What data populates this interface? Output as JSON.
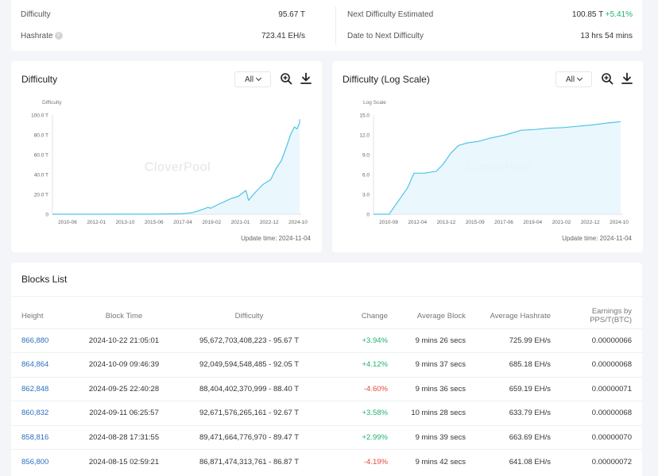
{
  "stats": {
    "difficulty_label": "Difficulty",
    "difficulty_value": "95.67 T",
    "hashrate_label": "Hashrate",
    "hashrate_value": "723.41 EH/s",
    "next_label": "Next Difficulty Estimated",
    "next_value": "100.85 T",
    "next_change": "+5.41%",
    "date_label": "Date to Next Difficulty",
    "date_value": "13 hrs 54 mins"
  },
  "charts": {
    "difficulty": {
      "title": "Difficulty",
      "range": "All",
      "update_time": "Update time: 2024-11-04"
    },
    "log": {
      "title": "Difficulty (Log Scale)",
      "range": "All",
      "update_time": "Update time: 2024-11-04"
    },
    "watermark": "CloverPool",
    "icons": [
      "zoom-in-icon",
      "download-icon"
    ],
    "line_color": "#4fc3ea",
    "area_color": "#e6f6fc"
  },
  "chart_data": [
    {
      "type": "area",
      "ylabel": "Difficulty",
      "y_ticks": [
        "0",
        "20.0 T",
        "40.0 T",
        "60.0 T",
        "80.0 T",
        "100.0 T"
      ],
      "x_ticks": [
        "2010-06",
        "2012-01",
        "2013-10",
        "2015-06",
        "2017-04",
        "2019-02",
        "2021-01",
        "2022-12",
        "2024-10"
      ],
      "ylim": [
        0,
        100
      ],
      "x": [
        "2009-01",
        "2010-06",
        "2012-01",
        "2013-10",
        "2015-06",
        "2016-06",
        "2017-04",
        "2017-12",
        "2018-06",
        "2018-12",
        "2019-02",
        "2019-08",
        "2020-01",
        "2020-06",
        "2020-11",
        "2021-01",
        "2021-05",
        "2021-07",
        "2021-12",
        "2022-06",
        "2022-12",
        "2023-04",
        "2023-08",
        "2023-12",
        "2024-03",
        "2024-06",
        "2024-08",
        "2024-10",
        "2024-10"
      ],
      "values": [
        0,
        0,
        0,
        0.1,
        0.1,
        0.3,
        0.5,
        1.5,
        4,
        7,
        6,
        10,
        13,
        16,
        18,
        20,
        24,
        14,
        22,
        30,
        35,
        46,
        54,
        68,
        80,
        88,
        86,
        92,
        95.7
      ],
      "grid": false
    },
    {
      "type": "area",
      "ylabel": "Log Scale",
      "y_ticks": [
        "0",
        "3.0",
        "6.0",
        "9.0",
        "12.0",
        "15.0"
      ],
      "x_ticks": [
        "2010-08",
        "2012-04",
        "2013-12",
        "2015-09",
        "2017-06",
        "2019-04",
        "2021-02",
        "2022-12",
        "2024-10"
      ],
      "ylim": [
        0,
        15
      ],
      "x": [
        "2009-01",
        "2010-01",
        "2010-08",
        "2011-03",
        "2011-08",
        "2012-04",
        "2013-01",
        "2013-06",
        "2013-12",
        "2014-06",
        "2015-01",
        "2015-09",
        "2016-06",
        "2017-06",
        "2018-06",
        "2019-04",
        "2020-02",
        "2021-02",
        "2022-01",
        "2022-12",
        "2023-12",
        "2024-10"
      ],
      "values": [
        0,
        0,
        2,
        4,
        6.2,
        6.2,
        6.5,
        7.5,
        9.2,
        10.4,
        10.8,
        11,
        11.5,
        12,
        12.7,
        12.8,
        13,
        13.1,
        13.3,
        13.5,
        13.8,
        14
      ],
      "grid": false
    }
  ],
  "blocks": {
    "title": "Blocks List",
    "columns": [
      "Height",
      "Block Time",
      "Difficulty",
      "Change",
      "Average Block",
      "Average Hashrate",
      "Earnings by PPS/T(BTC)"
    ],
    "rows": [
      {
        "height": "866,880",
        "time": "2024-10-22 21:05:01",
        "difficulty": "95,672,703,408,223 - 95.67 T",
        "change": "+3.94%",
        "avg_block": "9 mins 26 secs",
        "avg_hashrate": "725.99 EH/s",
        "earnings": "0.00000066"
      },
      {
        "height": "864,864",
        "time": "2024-10-09 09:46:39",
        "difficulty": "92,049,594,548,485 - 92.05 T",
        "change": "+4.12%",
        "avg_block": "9 mins 37 secs",
        "avg_hashrate": "685.18 EH/s",
        "earnings": "0.00000068"
      },
      {
        "height": "862,848",
        "time": "2024-09-25 22:40:28",
        "difficulty": "88,404,402,370,999 - 88.40 T",
        "change": "-4.60%",
        "avg_block": "9 mins 36 secs",
        "avg_hashrate": "659.19 EH/s",
        "earnings": "0.00000071"
      },
      {
        "height": "860,832",
        "time": "2024-09-11 06:25:57",
        "difficulty": "92,671,576,265,161 - 92.67 T",
        "change": "+3.58%",
        "avg_block": "10 mins 28 secs",
        "avg_hashrate": "633.79 EH/s",
        "earnings": "0.00000068"
      },
      {
        "height": "858,816",
        "time": "2024-08-28 17:31:55",
        "difficulty": "89,471,664,776,970 - 89.47 T",
        "change": "+2.99%",
        "avg_block": "9 mins 39 secs",
        "avg_hashrate": "663.69 EH/s",
        "earnings": "0.00000070"
      },
      {
        "height": "856,800",
        "time": "2024-08-15 02:59:21",
        "difficulty": "86,871,474,313,761 - 86.87 T",
        "change": "-4.19%",
        "avg_block": "9 mins 42 secs",
        "avg_hashrate": "641.08 EH/s",
        "earnings": "0.00000072"
      }
    ]
  }
}
